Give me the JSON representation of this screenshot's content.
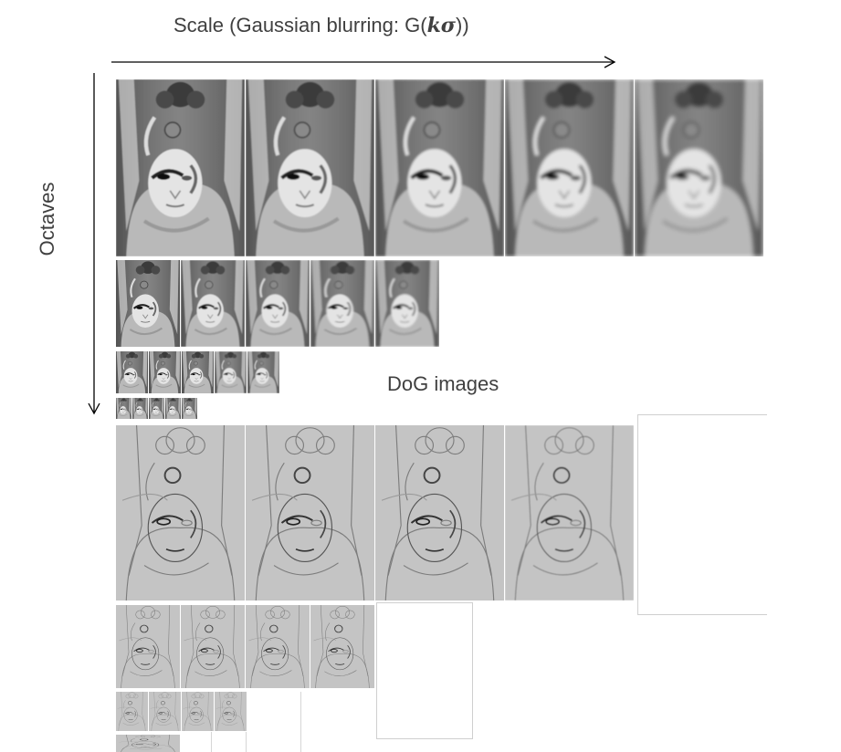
{
  "header": {
    "scale_label_prefix": "Scale (Gaussian blurring: G(",
    "scale_label_math": "kσ",
    "scale_label_suffix": "))"
  },
  "axis_labels": {
    "octaves": "Octaves",
    "dog_images": "DoG images"
  },
  "pyramid": {
    "gaussian_octaves": [
      {
        "octave": 1,
        "images": 5
      },
      {
        "octave": 2,
        "images": 5
      },
      {
        "octave": 3,
        "images": 5
      },
      {
        "octave": 4,
        "images": 5
      }
    ],
    "dog_octaves": [
      {
        "octave": 1,
        "images": 4
      },
      {
        "octave": 2,
        "images": 4
      },
      {
        "octave": 3,
        "images": 4
      },
      {
        "octave": 4,
        "images": 1
      }
    ]
  },
  "colors": {
    "text": "#404040",
    "arrow": "#000000",
    "gaussian_bg": "#6e6e6e",
    "dog_bg": "#c4c4c4"
  }
}
